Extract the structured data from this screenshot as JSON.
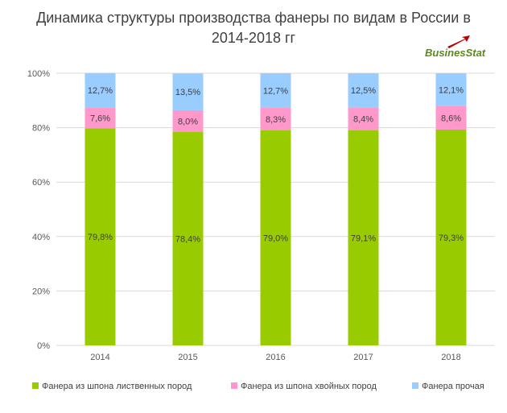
{
  "title_line1": "Динамика структуры производства фанеры по видам в России в",
  "title_line2": "2014-2018 гг",
  "logo": {
    "part1": "Busines",
    "part2": "Stat"
  },
  "colors": {
    "hardwood": "#99cc00",
    "softwood": "#ff99cc",
    "other": "#99ccff",
    "logo_green": "#5a8a1a",
    "logo_arrow": "#c00000"
  },
  "chart_data": {
    "type": "bar",
    "stacked": true,
    "categories": [
      "2014",
      "2015",
      "2016",
      "2017",
      "2018"
    ],
    "ylim": [
      0,
      100
    ],
    "yticks": [
      "0%",
      "20%",
      "40%",
      "60%",
      "80%",
      "100%"
    ],
    "grid": true,
    "legend_position": "bottom",
    "series": [
      {
        "name": "Фанера из шпона лиственных пород",
        "color": "#99cc00",
        "values": [
          79.8,
          78.4,
          79.0,
          79.1,
          79.3
        ],
        "labels": [
          "79,8%",
          "78,4%",
          "79,0%",
          "79,1%",
          "79,3%"
        ]
      },
      {
        "name": "Фанера из шпона хвойных пород",
        "color": "#ff99cc",
        "values": [
          7.6,
          8.0,
          8.3,
          8.4,
          8.6
        ],
        "labels": [
          "7,6%",
          "8,0%",
          "8,3%",
          "8,4%",
          "8,6%"
        ]
      },
      {
        "name": "Фанера прочая",
        "color": "#99ccff",
        "values": [
          12.7,
          13.5,
          12.7,
          12.5,
          12.1
        ],
        "labels": [
          "12,7%",
          "13,5%",
          "12,7%",
          "12,5%",
          "12,1%"
        ]
      }
    ]
  }
}
